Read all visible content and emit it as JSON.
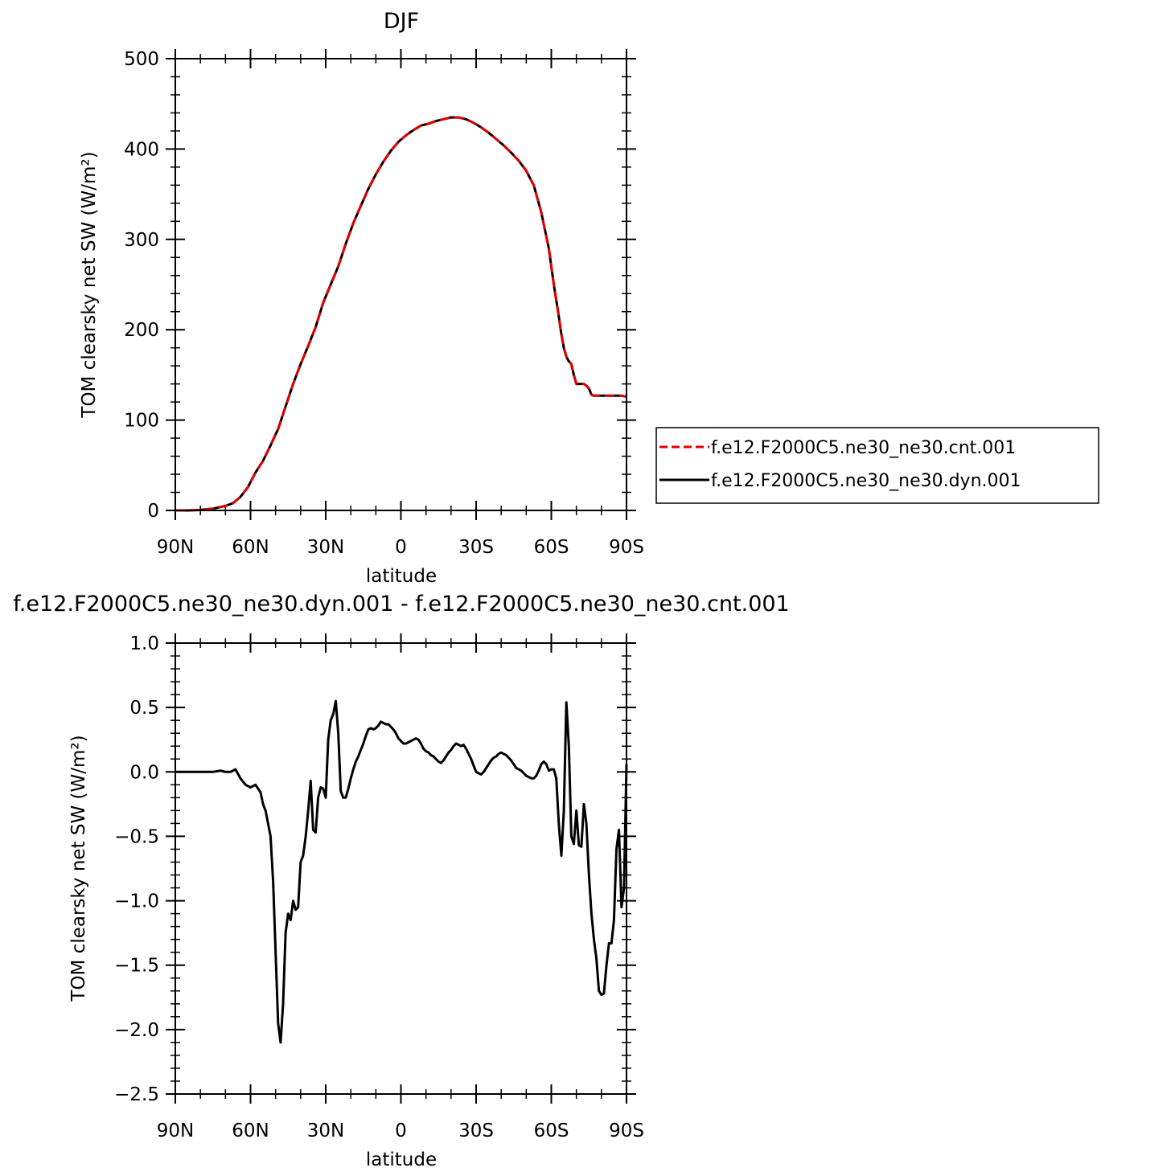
{
  "chart_data": [
    {
      "type": "line",
      "title": "DJF",
      "xlabel": "latitude",
      "ylabel": "TOM clearsky net SW (W/m²)",
      "xlim": [
        -90,
        90
      ],
      "ylim": [
        0,
        500
      ],
      "xticks": [
        -90,
        -60,
        -30,
        0,
        30,
        60,
        90
      ],
      "xtick_labels": [
        "90N",
        "60N",
        "30N",
        "0",
        "30S",
        "60S",
        "90S"
      ],
      "yticks": [
        0,
        100,
        200,
        300,
        400,
        500
      ],
      "ytick_labels": [
        "0",
        "100",
        "200",
        "300",
        "400",
        "500"
      ],
      "legend_position": "outside-right",
      "x": [
        -90,
        -85,
        -80,
        -75,
        -70,
        -67,
        -64,
        -61,
        -58,
        -55,
        -52,
        -49,
        -46,
        -43,
        -40,
        -37,
        -34,
        -31,
        -28,
        -25,
        -22,
        -19,
        -16,
        -13,
        -10,
        -7,
        -4,
        -1,
        2,
        5,
        8,
        11,
        14,
        17,
        20,
        23,
        26,
        29,
        32,
        35,
        38,
        41,
        44,
        47,
        50,
        53,
        56,
        59,
        61,
        63,
        64,
        65,
        66,
        67,
        68,
        69,
        70,
        71,
        72,
        73,
        74,
        75,
        76,
        77,
        78,
        79,
        80,
        82,
        84,
        86,
        88,
        90
      ],
      "series": [
        {
          "name": "f.e12.F2000C5.ne30_ne30.cnt.001",
          "color": "#e00000",
          "dash": "dashed",
          "y": [
            0,
            0,
            0.5,
            2,
            5,
            8,
            15,
            26,
            42,
            55,
            72,
            90,
            115,
            140,
            162,
            182,
            203,
            230,
            250,
            270,
            295,
            318,
            337,
            356,
            372,
            386,
            398,
            408,
            415,
            421,
            426,
            428,
            431,
            433,
            435,
            435,
            433,
            429,
            424,
            418,
            411,
            404,
            396,
            387,
            376,
            360,
            330,
            290,
            250,
            215,
            195,
            180,
            170,
            165,
            162,
            150,
            140,
            140,
            140,
            140,
            138,
            135,
            128,
            127,
            127,
            127,
            127,
            127,
            127,
            127,
            127,
            126
          ]
        },
        {
          "name": "f.e12.F2000C5.ne30_ne30.dyn.001",
          "color": "#000000",
          "dash": "solid",
          "y": [
            0,
            0,
            0.5,
            2,
            5,
            8,
            15,
            26,
            42,
            55,
            72,
            90,
            115,
            140,
            162,
            182,
            203,
            230,
            250,
            270,
            295,
            318,
            337,
            356,
            372,
            386,
            398,
            408,
            415,
            421,
            426,
            428,
            431,
            433,
            435,
            435,
            433,
            429,
            424,
            418,
            411,
            404,
            396,
            387,
            376,
            360,
            330,
            290,
            250,
            215,
            195,
            180,
            170,
            165,
            162,
            150,
            140,
            140,
            140,
            140,
            138,
            135,
            128,
            127,
            127,
            127,
            127,
            127,
            127,
            127,
            127,
            126
          ]
        }
      ]
    },
    {
      "type": "line",
      "title": "f.e12.F2000C5.ne30_ne30.dyn.001 - f.e12.F2000C5.ne30_ne30.cnt.001",
      "xlabel": "latitude",
      "ylabel": "TOM clearsky net SW (W/m²)",
      "xlim": [
        -90,
        90
      ],
      "ylim": [
        -2.5,
        1.0
      ],
      "xticks": [
        -90,
        -60,
        -30,
        0,
        30,
        60,
        90
      ],
      "xtick_labels": [
        "90N",
        "60N",
        "30N",
        "0",
        "30S",
        "60S",
        "90S"
      ],
      "yticks": [
        -2.5,
        -2.0,
        -1.5,
        -1.0,
        -0.5,
        0.0,
        0.5,
        1.0
      ],
      "ytick_labels": [
        "−2.5",
        "−2.0",
        "−1.5",
        "−1.0",
        "−0.5",
        "0.0",
        "0.5",
        "1.0"
      ],
      "series": [
        {
          "color": "#000000",
          "dash": "solid",
          "x": [
            -90,
            -75,
            -72,
            -70,
            -68,
            -67,
            -66,
            -64,
            -62,
            -60,
            -58,
            -57,
            -56,
            -55,
            -54,
            -53,
            -52,
            -51,
            -50,
            -49,
            -48,
            -47,
            -46,
            -45,
            -44,
            -43,
            -42,
            -41,
            -40,
            -39,
            -38,
            -37,
            -36,
            -35,
            -34,
            -33,
            -32,
            -31,
            -30,
            -29,
            -28,
            -27,
            -26,
            -25,
            -24,
            -23,
            -22,
            -21,
            -20,
            -19,
            -18,
            -17,
            -16,
            -15,
            -14,
            -13,
            -12,
            -11,
            -10,
            -9,
            -8,
            -7,
            -6,
            -5,
            -4,
            -3,
            -2,
            -1,
            0,
            1,
            2,
            3,
            4,
            5,
            6,
            7,
            8,
            9,
            10,
            11,
            12,
            13,
            14,
            15,
            16,
            17,
            18,
            19,
            20,
            21,
            22,
            23,
            24,
            25,
            26,
            27,
            28,
            29,
            30,
            31,
            32,
            33,
            34,
            35,
            36,
            37,
            38,
            39,
            40,
            41,
            42,
            43,
            44,
            45,
            46,
            47,
            48,
            49,
            50,
            51,
            52,
            53,
            54,
            55,
            56,
            57,
            58,
            59,
            60,
            61,
            62,
            63,
            64,
            65,
            66,
            67,
            68,
            69,
            70,
            71,
            72,
            73,
            74,
            75,
            76,
            77,
            78,
            79,
            80,
            81,
            82,
            83,
            84,
            85,
            86,
            87,
            88,
            89,
            90
          ],
          "y": [
            0.0,
            0.0,
            0.01,
            0.0,
            0.0,
            0.01,
            0.02,
            -0.05,
            -0.1,
            -0.12,
            -0.1,
            -0.13,
            -0.16,
            -0.25,
            -0.3,
            -0.4,
            -0.5,
            -0.85,
            -1.4,
            -1.95,
            -2.1,
            -1.8,
            -1.25,
            -1.1,
            -1.15,
            -1.0,
            -1.07,
            -1.05,
            -0.7,
            -0.65,
            -0.5,
            -0.3,
            -0.07,
            -0.45,
            -0.47,
            -0.2,
            -0.12,
            -0.13,
            -0.2,
            0.25,
            0.4,
            0.45,
            0.55,
            0.3,
            -0.15,
            -0.2,
            -0.2,
            -0.13,
            -0.05,
            0.02,
            0.08,
            0.12,
            0.17,
            0.22,
            0.28,
            0.33,
            0.34,
            0.33,
            0.34,
            0.36,
            0.39,
            0.38,
            0.37,
            0.37,
            0.35,
            0.33,
            0.3,
            0.26,
            0.24,
            0.22,
            0.22,
            0.23,
            0.24,
            0.25,
            0.26,
            0.25,
            0.22,
            0.18,
            0.16,
            0.15,
            0.13,
            0.12,
            0.1,
            0.08,
            0.07,
            0.09,
            0.12,
            0.15,
            0.17,
            0.2,
            0.22,
            0.21,
            0.2,
            0.21,
            0.18,
            0.14,
            0.1,
            0.05,
            0.0,
            -0.01,
            -0.02,
            0.0,
            0.03,
            0.06,
            0.09,
            0.11,
            0.12,
            0.14,
            0.15,
            0.14,
            0.13,
            0.11,
            0.09,
            0.06,
            0.03,
            0.02,
            0.01,
            -0.01,
            -0.03,
            -0.04,
            -0.05,
            -0.05,
            -0.03,
            0.01,
            0.06,
            0.08,
            0.06,
            0.01,
            0.02,
            0.02,
            -0.05,
            -0.4,
            -0.65,
            -0.3,
            0.54,
            0.2,
            -0.5,
            -0.56,
            -0.3,
            -0.57,
            -0.58,
            -0.25,
            -0.4,
            -0.8,
            -1.1,
            -1.3,
            -1.45,
            -1.7,
            -1.73,
            -1.72,
            -1.5,
            -1.33,
            -1.33,
            -1.15,
            -0.6,
            -0.45,
            -1.05,
            -0.9,
            0.06
          ]
        }
      ]
    }
  ]
}
